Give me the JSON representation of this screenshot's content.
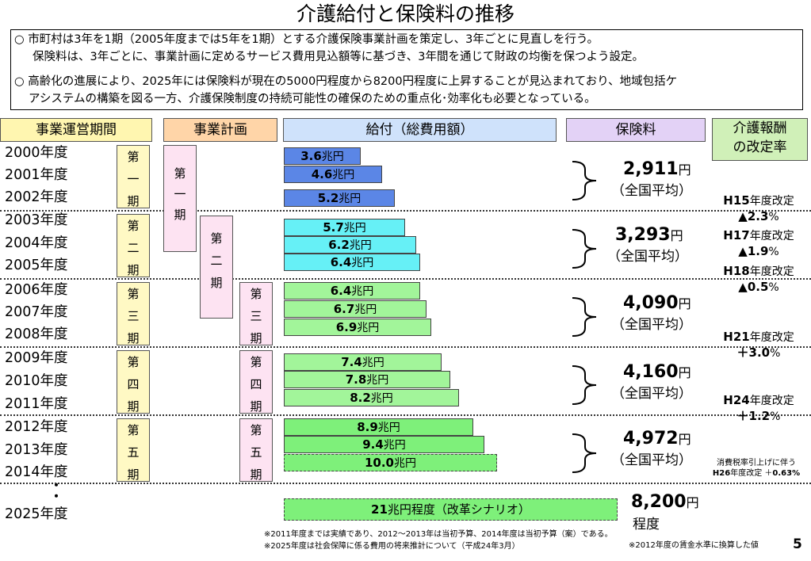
{
  "title": "介護給付と保険料の推移",
  "intro": {
    "p1_line1": "○ 市町村は3年を1期（2005年度までは5年を1期）とする介護保険事業計画を策定し、3年ごとに見直しを行う。",
    "p1_line2": "保険料は、3年ごとに、事業計画に定めるサービス費用見込額等に基づき、3年間を通じて財政の均衡を保つよう設定。",
    "p2_line1": "○ 高齢化の進展により、2025年には保険料が現在の5000円程度から8200円程度に上昇することが見込まれており、地域包括ケ",
    "p2_line2": "アシステムの構築を図る一方、介護保険制度の持続可能性の確保のための重点化･効率化も必要となっている。"
  },
  "headers": {
    "period": "事業運営期間",
    "plan": "事業計画",
    "benefit": "給付（総費用額）",
    "premium": "保険料",
    "revision_line1": "介護報酬",
    "revision_line2": "の改定率"
  },
  "colors": {
    "period_header": "#fff6b0",
    "plan_header": "#ffd5a8",
    "benefit_header": "#cfe2fb",
    "premium_header": "#e3d2f6",
    "revision_header": "#d0f0b8",
    "period_box": "#fff9c4",
    "plan_box": "#fde3f2",
    "bar_period1": "#5b86e6",
    "bar_period2": "#66f0f6",
    "bar_period3": "#a2f59a",
    "bar_period4": "#a2f59a",
    "bar_period5": "#7ef07a",
    "bar_2025": "#7ef07a"
  },
  "periods": [
    {
      "label": [
        "第",
        "一",
        "期"
      ]
    },
    {
      "label": [
        "第",
        "二",
        "期"
      ]
    },
    {
      "label": [
        "第",
        "三",
        "期"
      ]
    },
    {
      "label": [
        "第",
        "四",
        "期"
      ]
    },
    {
      "label": [
        "第",
        "五",
        "期"
      ]
    }
  ],
  "plans": [
    {
      "label": [
        "第",
        "一",
        "期"
      ]
    },
    {
      "label": [
        "第",
        "二",
        "期"
      ]
    },
    {
      "label": [
        "第",
        "三",
        "期"
      ]
    },
    {
      "label": [
        "第",
        "四",
        "期"
      ]
    },
    {
      "label": [
        "第",
        "五",
        "期"
      ]
    }
  ],
  "ellipsis": "・\n・",
  "chart_data": {
    "type": "bar",
    "orientation": "horizontal",
    "title": "介護給付と保険料の推移",
    "unit_suffix": "兆円",
    "categories": [
      "2000年度",
      "2001年度",
      "2002年度",
      "2003年度",
      "2004年度",
      "2005年度",
      "2006年度",
      "2007年度",
      "2008年度",
      "2009年度",
      "2010年度",
      "2011年度",
      "2012年度",
      "2013年度",
      "2014年度",
      "2025年度"
    ],
    "values": [
      3.6,
      4.6,
      5.2,
      5.7,
      6.2,
      6.4,
      6.4,
      6.7,
      6.9,
      7.4,
      7.8,
      8.2,
      8.9,
      9.4,
      10.0,
      21
    ],
    "value_labels": [
      "3.6",
      "4.6",
      "5.2",
      "5.7",
      "6.2",
      "6.4",
      "6.4",
      "6.7",
      "6.9",
      "7.4",
      "7.8",
      "8.2",
      "8.9",
      "9.4",
      "10.0",
      "21"
    ],
    "label_2025_suffix": "兆円程度（改革シナリオ）",
    "estimated": [
      false,
      false,
      false,
      false,
      false,
      false,
      false,
      false,
      false,
      false,
      false,
      false,
      false,
      false,
      true,
      true
    ],
    "xlim": [
      0,
      21
    ]
  },
  "premiums": [
    {
      "value": "2,911",
      "unit": "円",
      "sub": "（全国平均）"
    },
    {
      "value": "3,293",
      "unit": "円",
      "sub": "（全国平均）"
    },
    {
      "value": "4,090",
      "unit": "円",
      "sub": "（全国平均）"
    },
    {
      "value": "4,160",
      "unit": "円",
      "sub": "（全国平均）"
    },
    {
      "value": "4,972",
      "unit": "円",
      "sub": "（全国平均）"
    },
    {
      "value": "8,200",
      "unit": "円",
      "sub": "程度"
    }
  ],
  "revisions": [
    {
      "era": "H15",
      "suffix": "年度改定",
      "rate": "▲2.3",
      "pct": "%"
    },
    {
      "era": "H17",
      "suffix": "年度改定",
      "rate": "▲1.9",
      "pct": "%"
    },
    {
      "era": "H18",
      "suffix": "年度改定",
      "rate": "▲0.5",
      "pct": "%"
    },
    {
      "era": "H21",
      "suffix": "年度改定",
      "rate": "＋3.0",
      "pct": "%"
    },
    {
      "era": "H24",
      "suffix": "年度改定",
      "rate": "＋1.2",
      "pct": "%"
    }
  ],
  "tax_note": {
    "line1": "消費税率引上げに伴う",
    "era": "H26",
    "suffix": "年度改定 ＋",
    "rate": "0.63%"
  },
  "notes": {
    "n1": "※2011年度までは実績であり、2012～2013年は当初予算、2014年度は当初予算（案）である。",
    "n2": "※2025年度は社会保障に係る費用の将来推計について（平成24年3月）",
    "n3": "※2012年度の賃金水準に換算した値"
  },
  "page_number": "5"
}
